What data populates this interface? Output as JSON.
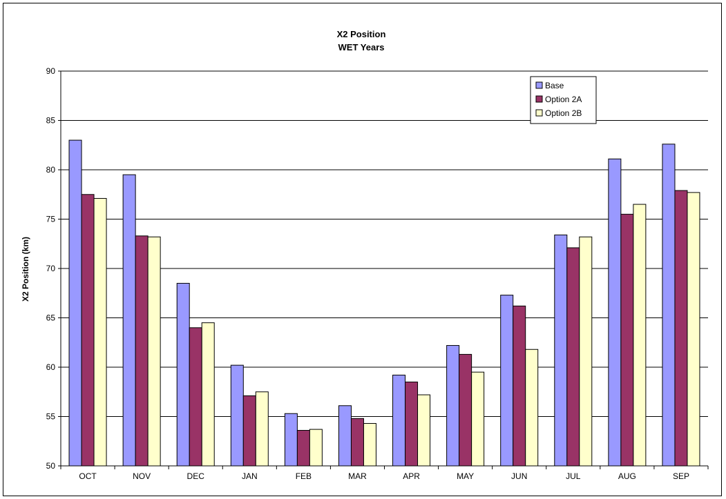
{
  "chart_data": {
    "type": "bar",
    "title": "X2 Position",
    "subtitle": "WET Years",
    "xlabel": "",
    "ylabel": "X2 Position (km)",
    "ylim": [
      50,
      90
    ],
    "yticks": [
      50,
      55,
      60,
      65,
      70,
      75,
      80,
      85,
      90
    ],
    "grid": true,
    "legend_position": "top-right",
    "categories": [
      "OCT",
      "NOV",
      "DEC",
      "JAN",
      "FEB",
      "MAR",
      "APR",
      "MAY",
      "JUN",
      "JUL",
      "AUG",
      "SEP"
    ],
    "series": [
      {
        "name": "Base",
        "color": "#9999ff",
        "values": [
          83.0,
          79.5,
          68.5,
          60.2,
          55.3,
          56.1,
          59.2,
          62.2,
          67.3,
          73.4,
          81.1,
          82.6
        ]
      },
      {
        "name": "Option 2A",
        "color": "#993366",
        "values": [
          77.5,
          73.3,
          64.0,
          57.1,
          53.6,
          54.8,
          58.5,
          61.3,
          66.2,
          72.1,
          75.5,
          77.9
        ]
      },
      {
        "name": "Option 2B",
        "color": "#ffffcc",
        "values": [
          77.1,
          73.2,
          64.5,
          57.5,
          53.7,
          54.3,
          57.2,
          59.5,
          61.8,
          73.2,
          76.5,
          77.7
        ]
      }
    ]
  }
}
